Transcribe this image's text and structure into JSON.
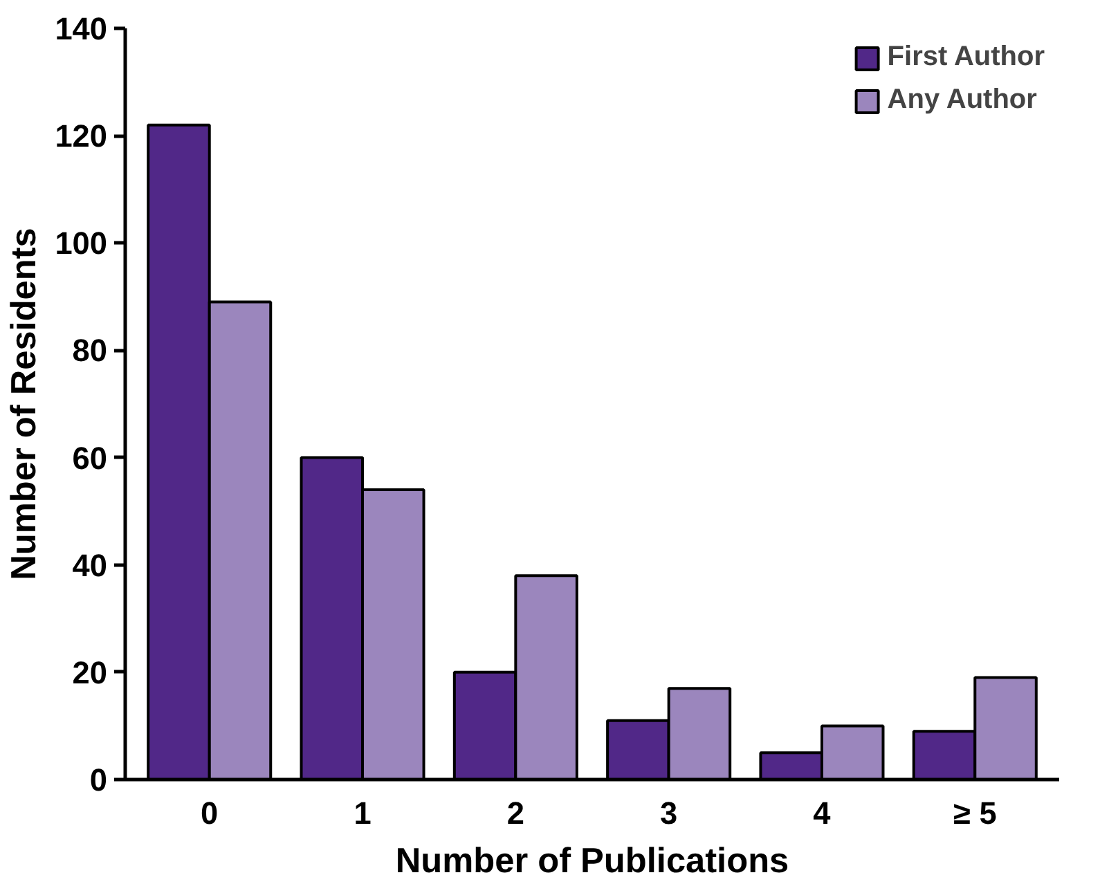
{
  "chart_data": {
    "type": "bar",
    "xlabel": "Number of Publications",
    "ylabel": "Number of Residents",
    "categories": [
      "0",
      "1",
      "2",
      "3",
      "4",
      "≥ 5"
    ],
    "series": [
      {
        "name": "First Author",
        "color": "#512888",
        "values": [
          122,
          60,
          20,
          11,
          5,
          9
        ]
      },
      {
        "name": "Any Author",
        "color": "#9b86bd",
        "values": [
          89,
          54,
          38,
          17,
          10,
          19
        ]
      }
    ],
    "ylim": [
      0,
      140
    ],
    "yticks": [
      0,
      20,
      40,
      60,
      80,
      100,
      120,
      140
    ],
    "grid": false,
    "legend": "top right"
  }
}
